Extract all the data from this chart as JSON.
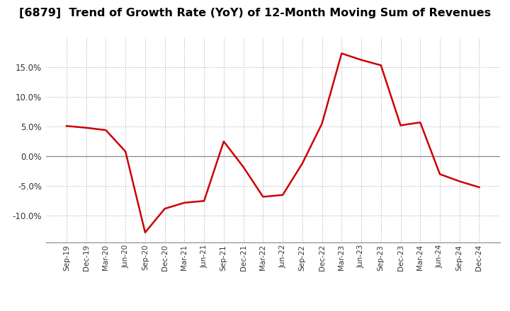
{
  "title": "[6879]  Trend of Growth Rate (YoY) of 12-Month Moving Sum of Revenues",
  "title_fontsize": 11.5,
  "line_color": "#CC0000",
  "line_width": 1.8,
  "background_color": "#FFFFFF",
  "plot_bg_color": "#FFFFFF",
  "grid_color": "#AAAAAA",
  "x_labels": [
    "Sep-19",
    "Dec-19",
    "Mar-20",
    "Jun-20",
    "Sep-20",
    "Dec-20",
    "Mar-21",
    "Jun-21",
    "Sep-21",
    "Dec-21",
    "Mar-22",
    "Jun-22",
    "Sep-22",
    "Dec-22",
    "Mar-23",
    "Jun-23",
    "Sep-23",
    "Dec-23",
    "Mar-24",
    "Jun-24",
    "Sep-24",
    "Dec-24"
  ],
  "y_values": [
    5.1,
    4.8,
    4.4,
    0.8,
    -12.8,
    -8.8,
    -7.8,
    -7.5,
    2.5,
    -1.8,
    -6.8,
    -6.5,
    -1.2,
    5.5,
    17.3,
    16.2,
    15.3,
    5.2,
    5.7,
    -3.0,
    -4.2,
    -5.2
  ],
  "ylim": [
    -14.5,
    20
  ],
  "yticks": [
    -10.0,
    -5.0,
    0.0,
    5.0,
    10.0,
    15.0
  ],
  "zero_line_color": "#888888",
  "spine_color": "#888888",
  "tick_label_color": "#333333"
}
